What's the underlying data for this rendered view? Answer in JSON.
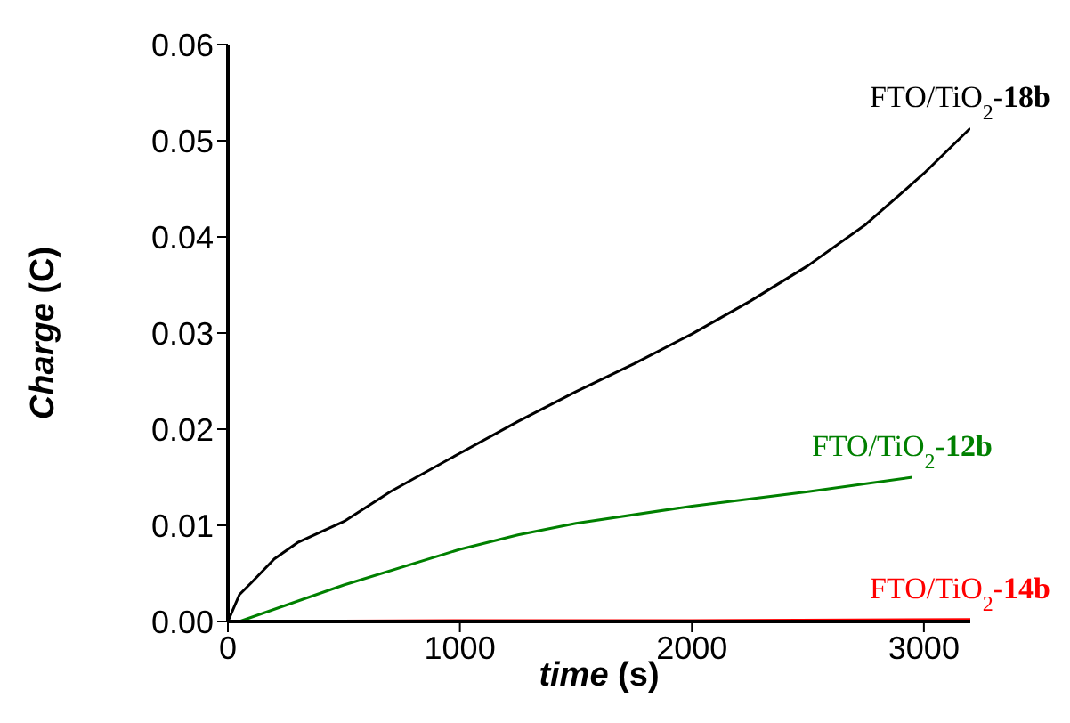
{
  "chart_data": {
    "type": "line",
    "xlabel": "time (s)",
    "ylabel": "Charge (C)",
    "xlim": [
      0,
      3200
    ],
    "xticks": [
      0,
      1000,
      2000,
      3000
    ],
    "ylim": [
      0,
      0.06
    ],
    "yticks": [
      {
        "value": 0,
        "label": "0.00"
      },
      {
        "value": 0.01,
        "label": "0.01"
      },
      {
        "value": 0.02,
        "label": "0.02"
      },
      {
        "value": 0.03,
        "label": "0.03"
      },
      {
        "value": 0.04,
        "label": "0.04"
      },
      {
        "value": 0.05,
        "label": "0.05"
      },
      {
        "value": 0.06,
        "label": "0.06"
      }
    ],
    "series": [
      {
        "name": "FTO/TiO$_{2}$-18b",
        "color": "#000000",
        "x": [
          0,
          50,
          100,
          200,
          300,
          500,
          700,
          1000,
          1250,
          1500,
          1750,
          2000,
          2250,
          2500,
          2750,
          3000,
          3200
        ],
        "values": [
          0,
          0.0028,
          0.004,
          0.0065,
          0.0082,
          0.0104,
          0.0135,
          0.0175,
          0.0208,
          0.0239,
          0.0268,
          0.0299,
          0.0333,
          0.037,
          0.0413,
          0.0466,
          0.0513
        ]
      },
      {
        "name": "FTO/TiO$_{2}$-12b",
        "color": "#008000",
        "x": [
          0,
          50,
          500,
          1000,
          1250,
          1500,
          2000,
          2500,
          2950
        ],
        "values": [
          0,
          0,
          0.0038,
          0.0075,
          0.009,
          0.0102,
          0.012,
          0.0135,
          0.015
        ]
      },
      {
        "name": "FTO/TiO$_{2}$-14b",
        "color": "#ff0000",
        "x": [
          0,
          1000,
          2000,
          3200
        ],
        "values": [
          0,
          0.0001,
          0.0001,
          0.0002
        ]
      }
    ]
  }
}
